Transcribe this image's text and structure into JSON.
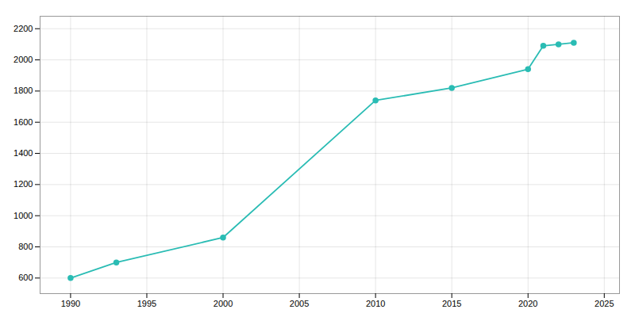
{
  "chart_data": {
    "type": "line",
    "x": [
      1990,
      1993,
      2000,
      2010,
      2015,
      2020,
      2021,
      2022,
      2023
    ],
    "values": [
      600,
      700,
      860,
      1740,
      1820,
      1940,
      2090,
      2100,
      2110
    ],
    "color": "#2abcb4",
    "marker": "circle",
    "xlim": [
      1988,
      2026
    ],
    "ylim": [
      500,
      2280
    ],
    "xticks": [
      1990,
      1995,
      2000,
      2005,
      2010,
      2015,
      2020,
      2025
    ],
    "yticks": [
      600,
      800,
      1000,
      1200,
      1400,
      1600,
      1800,
      2000,
      2200
    ],
    "grid": true
  }
}
